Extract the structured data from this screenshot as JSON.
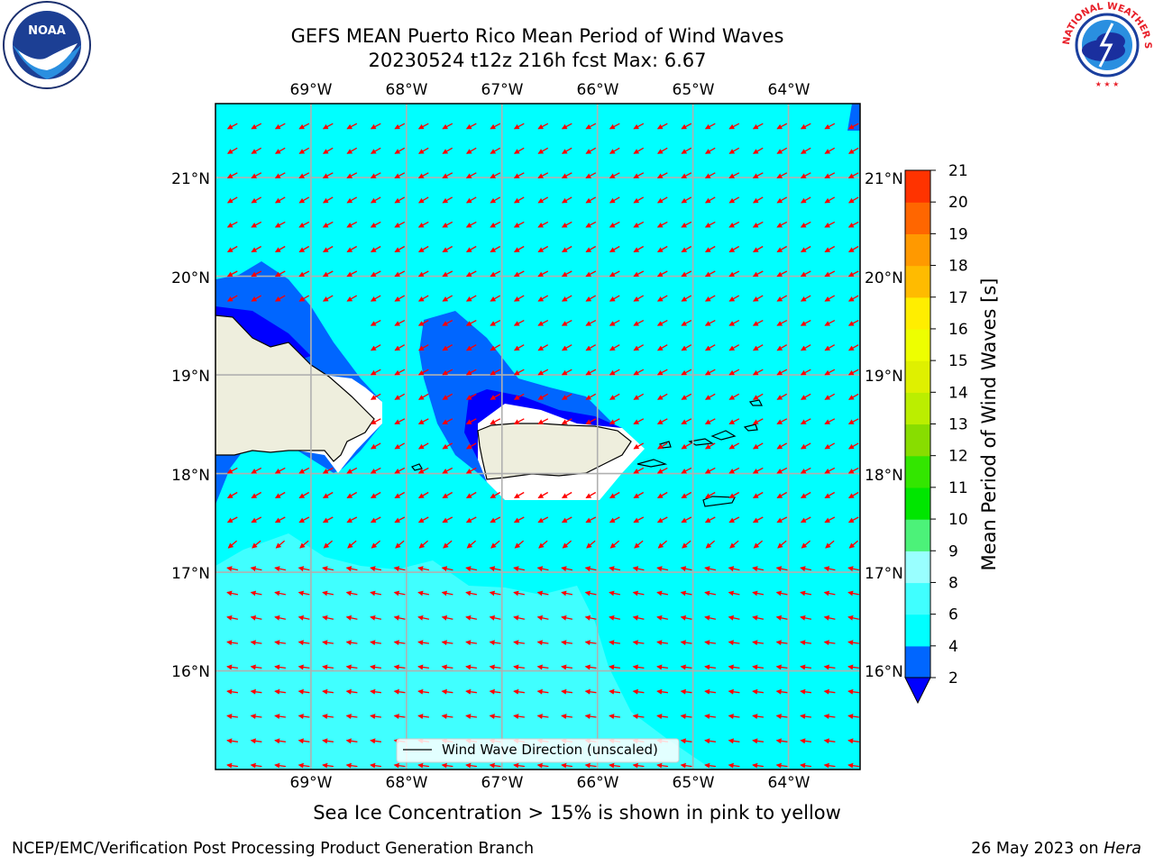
{
  "title": {
    "line1": "GEFS MEAN Puerto Rico Mean Period of Wind Waves",
    "line2": "20230524 t12z 216h fcst   Max: 6.67"
  },
  "map": {
    "lon_ticks": [
      "69°W",
      "68°W",
      "67°W",
      "66°W",
      "65°W",
      "64°W"
    ],
    "lat_ticks": [
      "21°N",
      "20°N",
      "19°N",
      "18°N",
      "17°N",
      "16°N"
    ],
    "lon_range": [
      -70,
      -63.25
    ],
    "lat_range": [
      15,
      21.75
    ],
    "ocean_color": "#00ffff",
    "land_color": "#eeeedd",
    "arrow_color": "#ff0000",
    "legend_label": "Wind Wave Direction (unscaled)"
  },
  "colorbar": {
    "label": "Mean Period of Wind Waves [s]",
    "tick_labels": [
      "2",
      "4",
      "6",
      "8",
      "9",
      "10",
      "11",
      "12",
      "13",
      "14",
      "15",
      "16",
      "17",
      "18",
      "19",
      "20",
      "21"
    ],
    "colors": [
      "#0066ff",
      "#00ffff",
      "#40ffff",
      "#99ffff",
      "#4cf279",
      "#00e600",
      "#33e600",
      "#88dd00",
      "#bbee00",
      "#dff000",
      "#eeff00",
      "#ffee00",
      "#ffbb00",
      "#ff9900",
      "#ff6600",
      "#ff3300"
    ],
    "under_color": "#0000ff",
    "over_color": "#ff0000"
  },
  "note": "Sea Ice Concentration > 15% is shown in pink to yellow",
  "footer": {
    "left": "NCEP/EMC/Verification Post Processing Product Generation Branch",
    "date": "26 May 2023 on ",
    "machine": "Hera"
  },
  "logos": {
    "noaa_text": "NOAA",
    "nws_text": "NATIONAL WEATHER SERVICE"
  }
}
